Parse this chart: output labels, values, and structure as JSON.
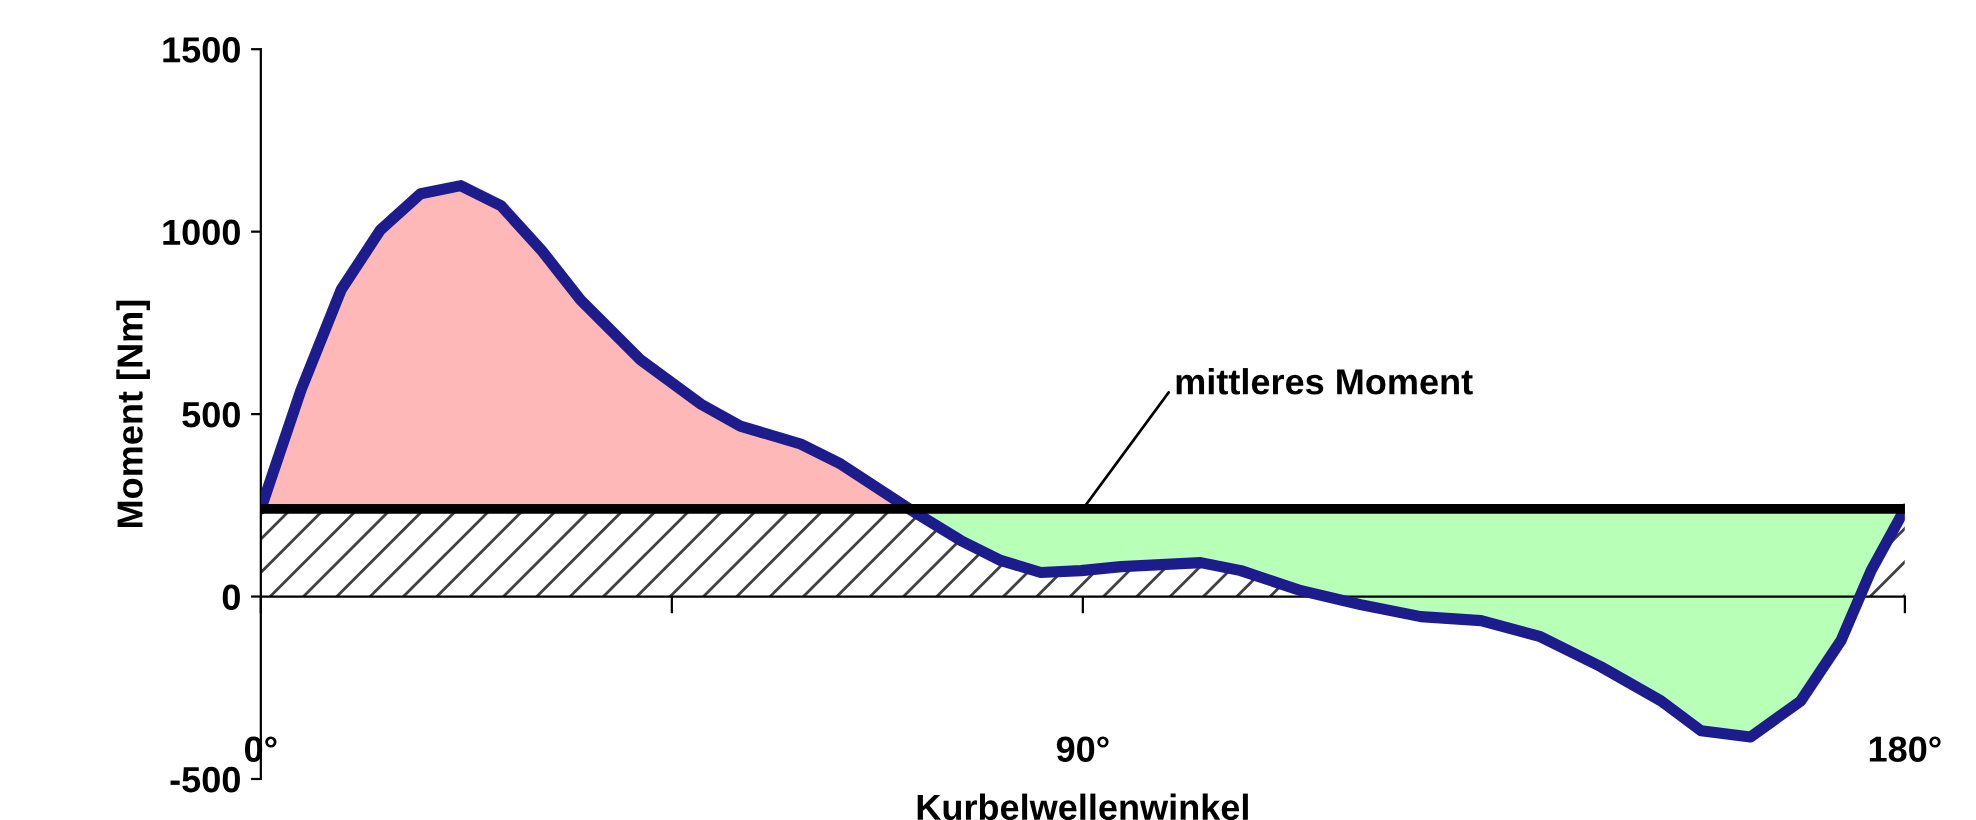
{
  "chart_data": {
    "type": "line",
    "xlabel": "Kurbelwellenwinkel",
    "ylabel": "Moment [Nm]",
    "series": [
      {
        "color": "#1c1c8c",
        "x": [
          0,
          4.4,
          8.8,
          13.1,
          17.5,
          21.9,
          26.3,
          30.7,
          35,
          41.6,
          48.2,
          52.5,
          59.1,
          63.5,
          67.9,
          71,
          72.3,
          76.6,
          81,
          85.4,
          89.8,
          94.2,
          102.9,
          107.3,
          113.9,
          120.4,
          127,
          133.6,
          140.1,
          146.7,
          153.3,
          157.7,
          163.1,
          168.6,
          173,
          176.3,
          180
        ],
        "values": [
          240,
          566,
          841,
          1005,
          1104,
          1126,
          1071,
          950,
          813,
          648,
          527,
          467,
          418,
          363,
          291,
          240,
          220,
          154,
          99,
          66,
          71,
          82,
          93,
          71,
          16,
          -22,
          -55,
          -66,
          -110,
          -192,
          -286,
          -368,
          -385,
          -286,
          -121,
          71,
          240
        ]
      }
    ],
    "ref_lines": [
      {
        "axis": "y",
        "value": 240,
        "color": "#000000"
      }
    ],
    "bands": [
      {
        "axis": "y",
        "from": 0,
        "to": 240,
        "color": "#404040"
      }
    ],
    "annotations": [
      {
        "text": "mittleres Moment",
        "x": 90,
        "y": 240
      }
    ],
    "xlim": [
      0,
      180
    ],
    "ylim": [
      -500,
      1500
    ],
    "xticks": [
      {
        "value": 0,
        "label": "0°"
      },
      {
        "value": 45,
        "label": null
      },
      {
        "value": 90,
        "label": "90°"
      },
      {
        "value": 135,
        "label": null
      },
      {
        "value": 180,
        "label": "180°"
      }
    ],
    "yticks": [
      -500,
      0,
      500,
      1000,
      1500
    ],
    "legend": false,
    "marker": "none",
    "line_style": "solid"
  }
}
